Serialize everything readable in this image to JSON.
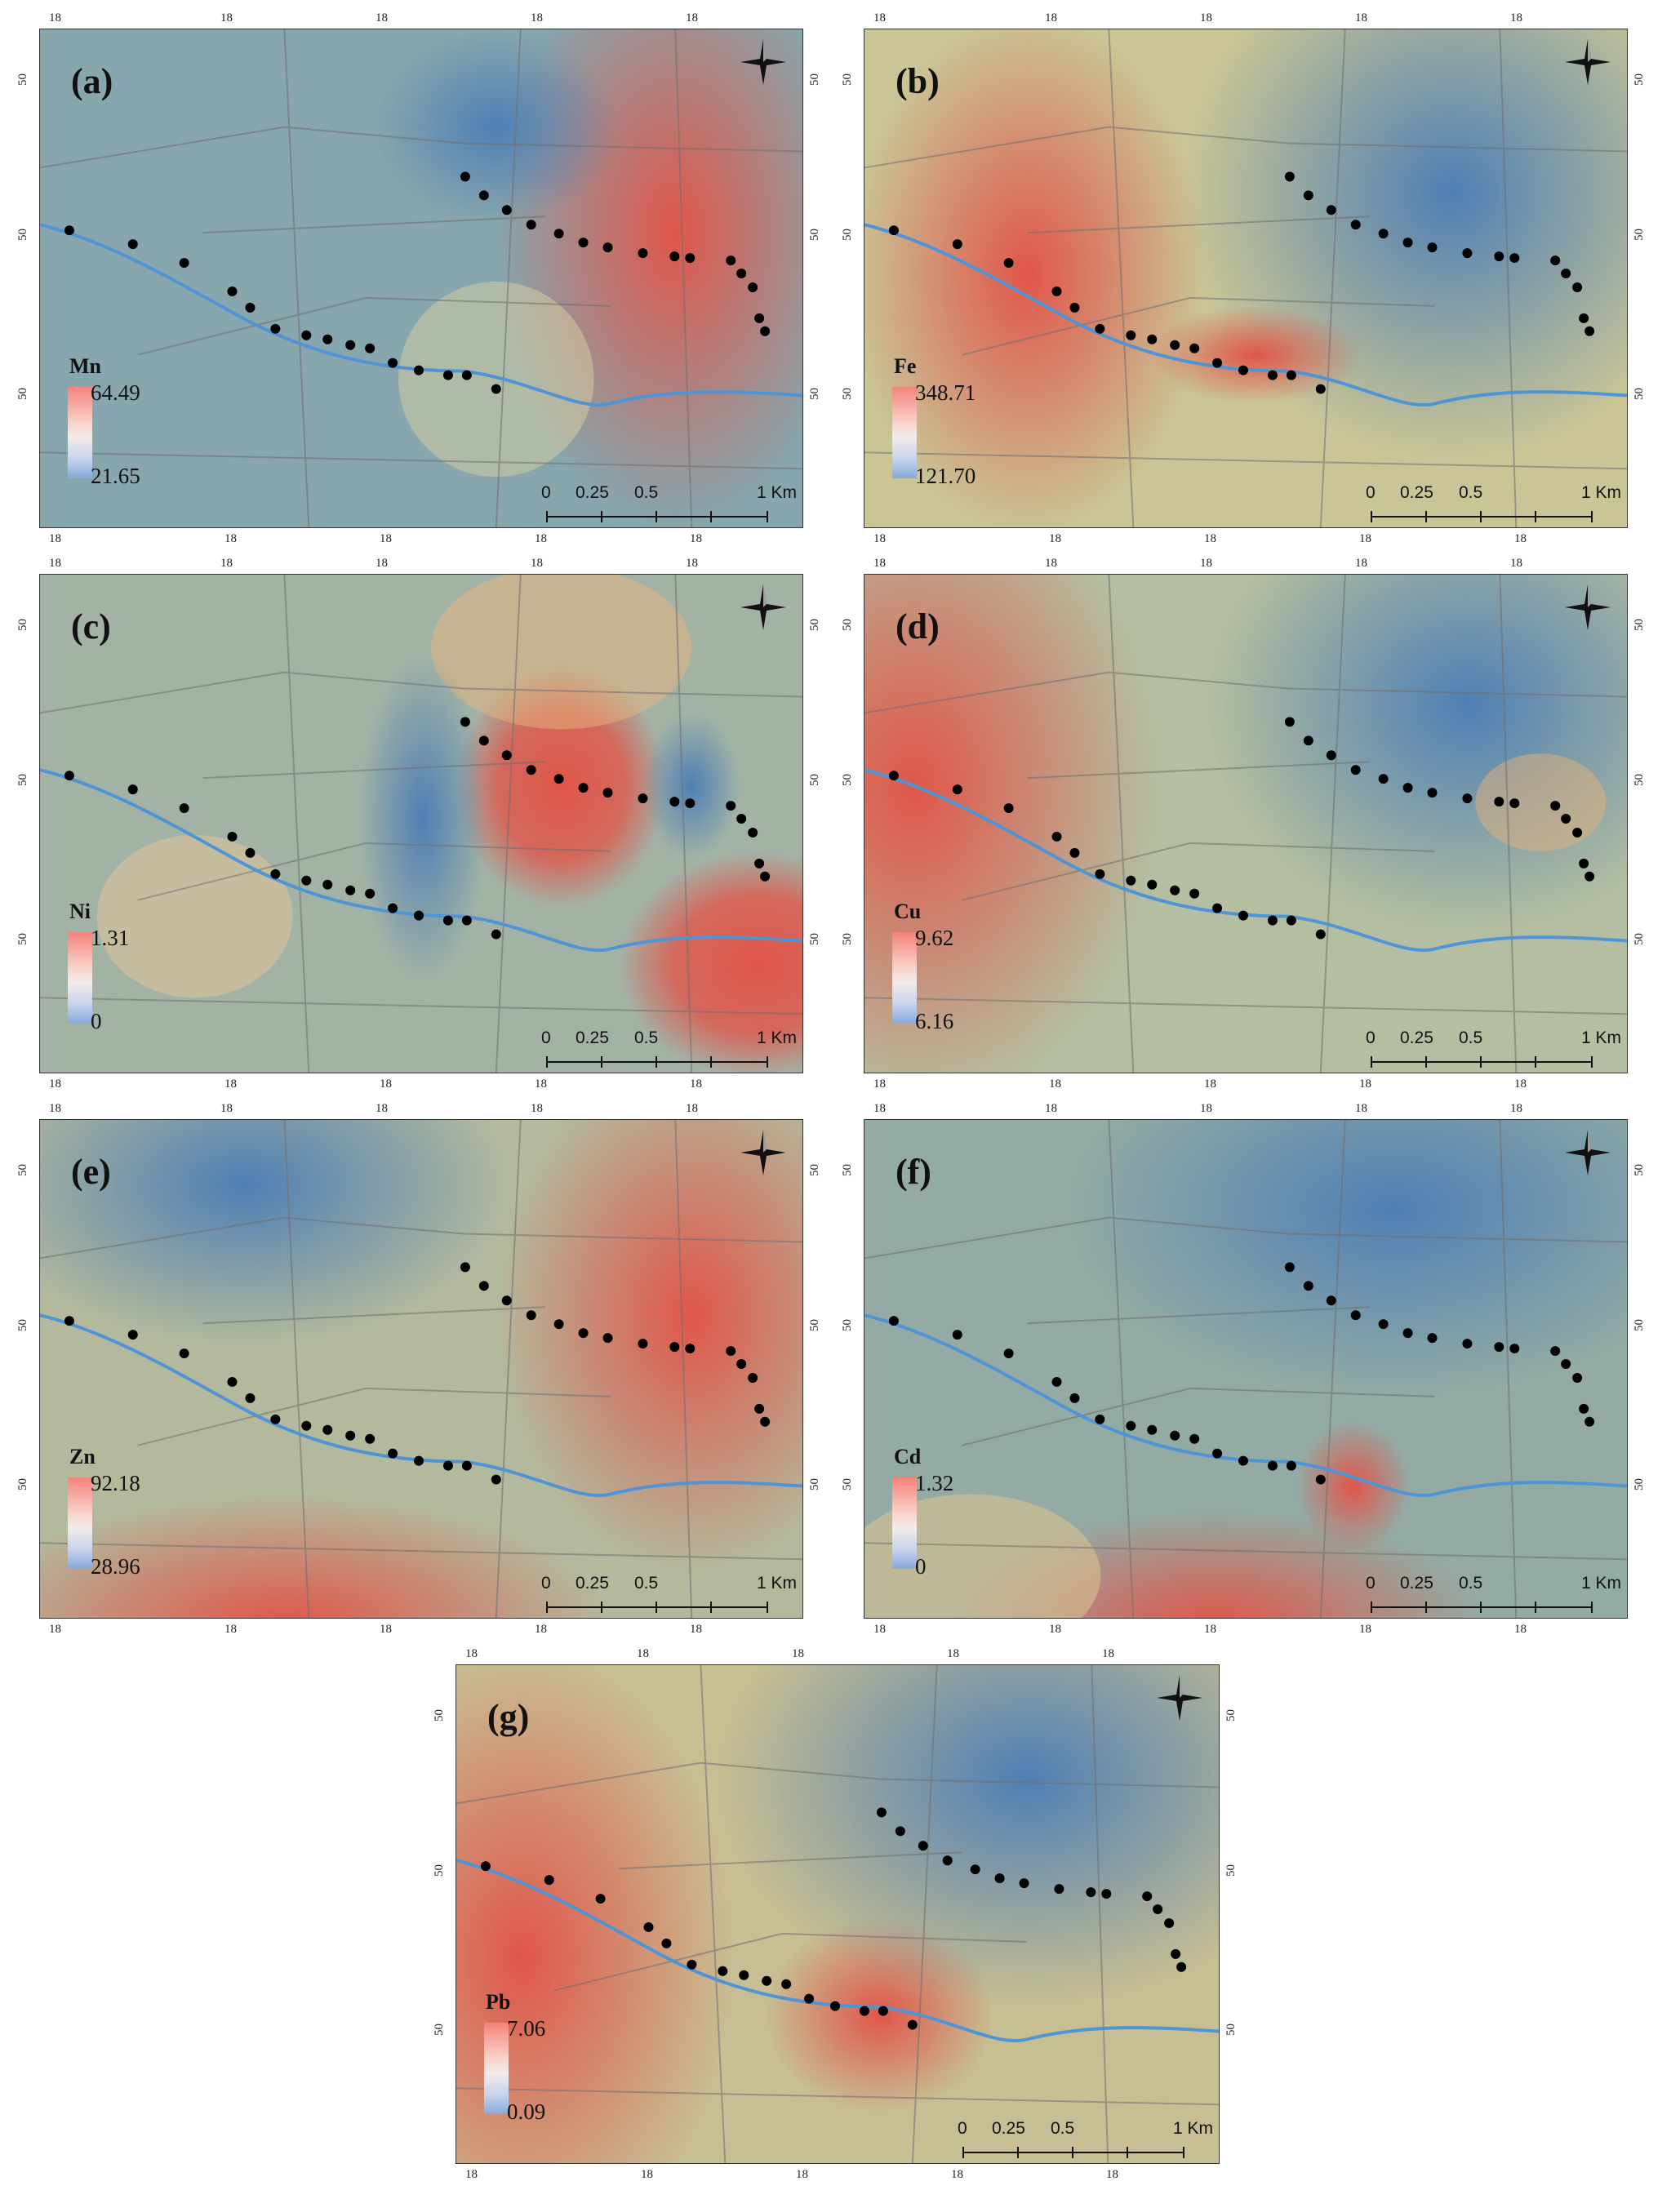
{
  "ticks": {
    "lon_label": "18",
    "lat_label": "50"
  },
  "scalebar": {
    "labels": [
      "0",
      "0.25",
      "0.5",
      "1 Km"
    ]
  },
  "panels": [
    {
      "id": "a",
      "label": "(a)",
      "element": "Mn",
      "max": "64.49",
      "min": "21.65"
    },
    {
      "id": "b",
      "label": "(b)",
      "element": "Fe",
      "max": "348.71",
      "min": "121.70"
    },
    {
      "id": "c",
      "label": "(c)",
      "element": "Ni",
      "max": "1.31",
      "min": "0"
    },
    {
      "id": "d",
      "label": "(d)",
      "element": "Cu",
      "max": "9.62",
      "min": "6.16"
    },
    {
      "id": "e",
      "label": "(e)",
      "element": "Zn",
      "max": "92.18",
      "min": "28.96"
    },
    {
      "id": "f",
      "label": "(f)",
      "element": "Cd",
      "max": "1.32",
      "min": "0"
    },
    {
      "id": "g",
      "label": "(g)",
      "element": "Pb",
      "max": "7.06",
      "min": "0.09"
    }
  ],
  "colors": {
    "high": "#e0564a",
    "mid": "#e8e2b8",
    "low": "#5d87b4",
    "river": "#4f95d6",
    "sample_point": "#000000"
  },
  "icons": [
    "north-arrow-compass-icon"
  ]
}
